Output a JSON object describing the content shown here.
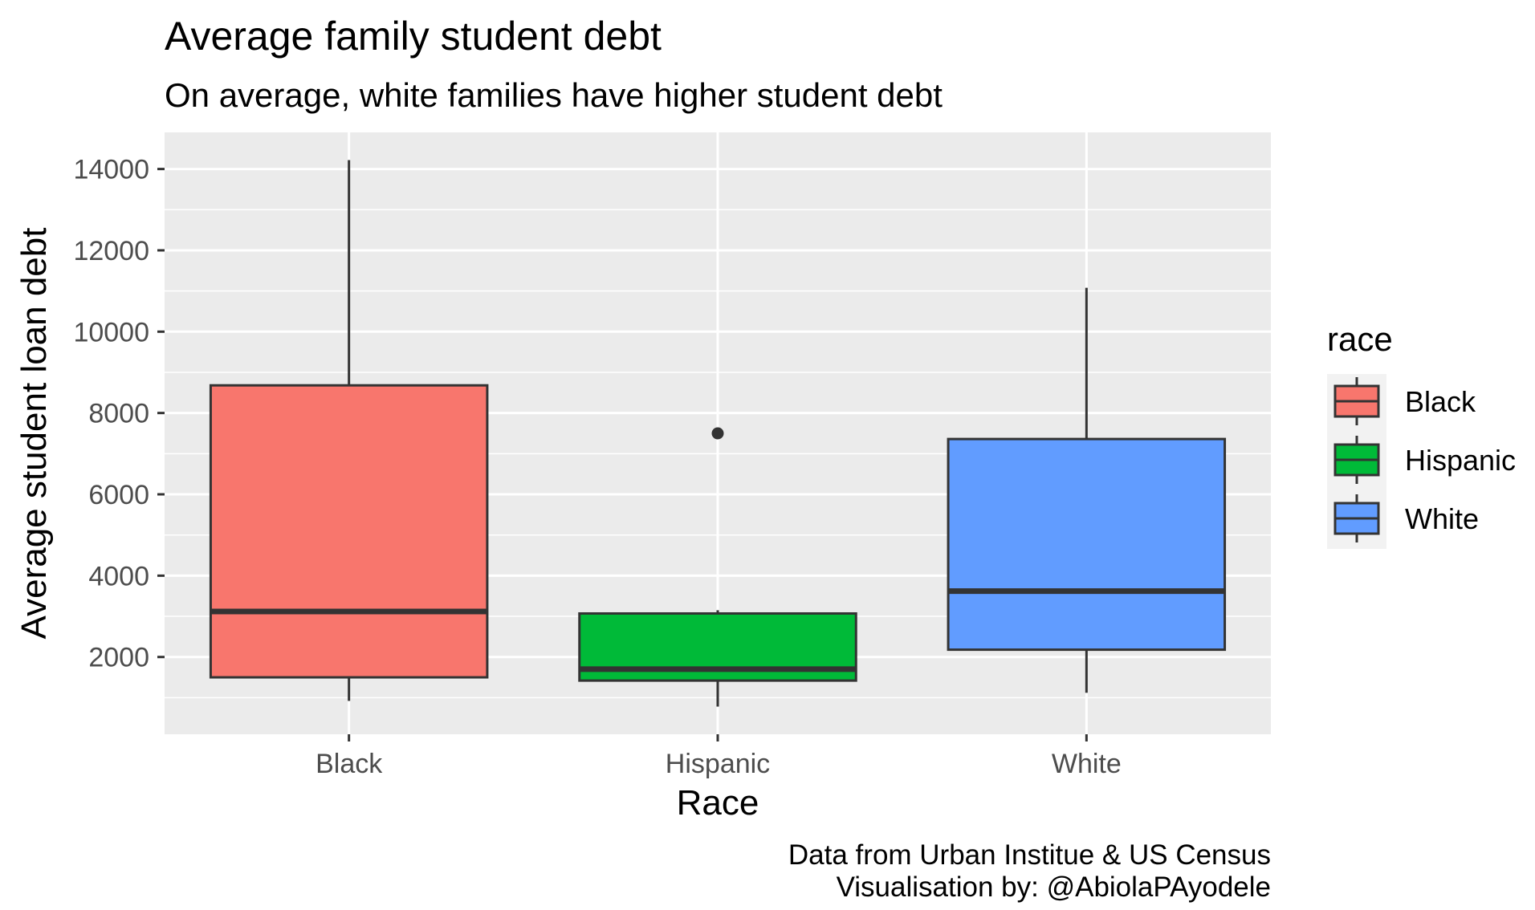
{
  "chart_data": {
    "type": "boxplot",
    "title": "Average family student debt",
    "subtitle": "On average, white families have higher student debt",
    "xlabel": "Race",
    "ylabel": "Average student loan debt",
    "caption_lines": [
      "Data from Urban Institue & US Census",
      "Visualisation by: @AbiolaPAyodele"
    ],
    "categories": [
      "Black",
      "Hispanic",
      "White"
    ],
    "ylim": [
      100,
      14900
    ],
    "y_ticks": [
      2000,
      4000,
      6000,
      8000,
      10000,
      12000,
      14000
    ],
    "y_tick_labels": [
      "2000",
      "4000",
      "6000",
      "8000",
      "10000",
      "12000",
      "14000"
    ],
    "grid": true,
    "legend": {
      "title": "race",
      "position": "right",
      "entries": [
        "Black",
        "Hispanic",
        "White"
      ]
    },
    "boxes": [
      {
        "category": "Black",
        "lower_whisker": 920,
        "q1": 1500,
        "median": 3120,
        "q3": 8680,
        "upper_whisker": 14220,
        "outliers": [],
        "color": "#F8766D"
      },
      {
        "category": "Hispanic",
        "lower_whisker": 780,
        "q1": 1420,
        "median": 1700,
        "q3": 3070,
        "upper_whisker": 3150,
        "outliers": [
          7500
        ],
        "color": "#00BA38"
      },
      {
        "category": "White",
        "lower_whisker": 1120,
        "q1": 2180,
        "median": 3620,
        "q3": 7360,
        "upper_whisker": 11080,
        "outliers": [],
        "color": "#619CFF"
      }
    ]
  }
}
